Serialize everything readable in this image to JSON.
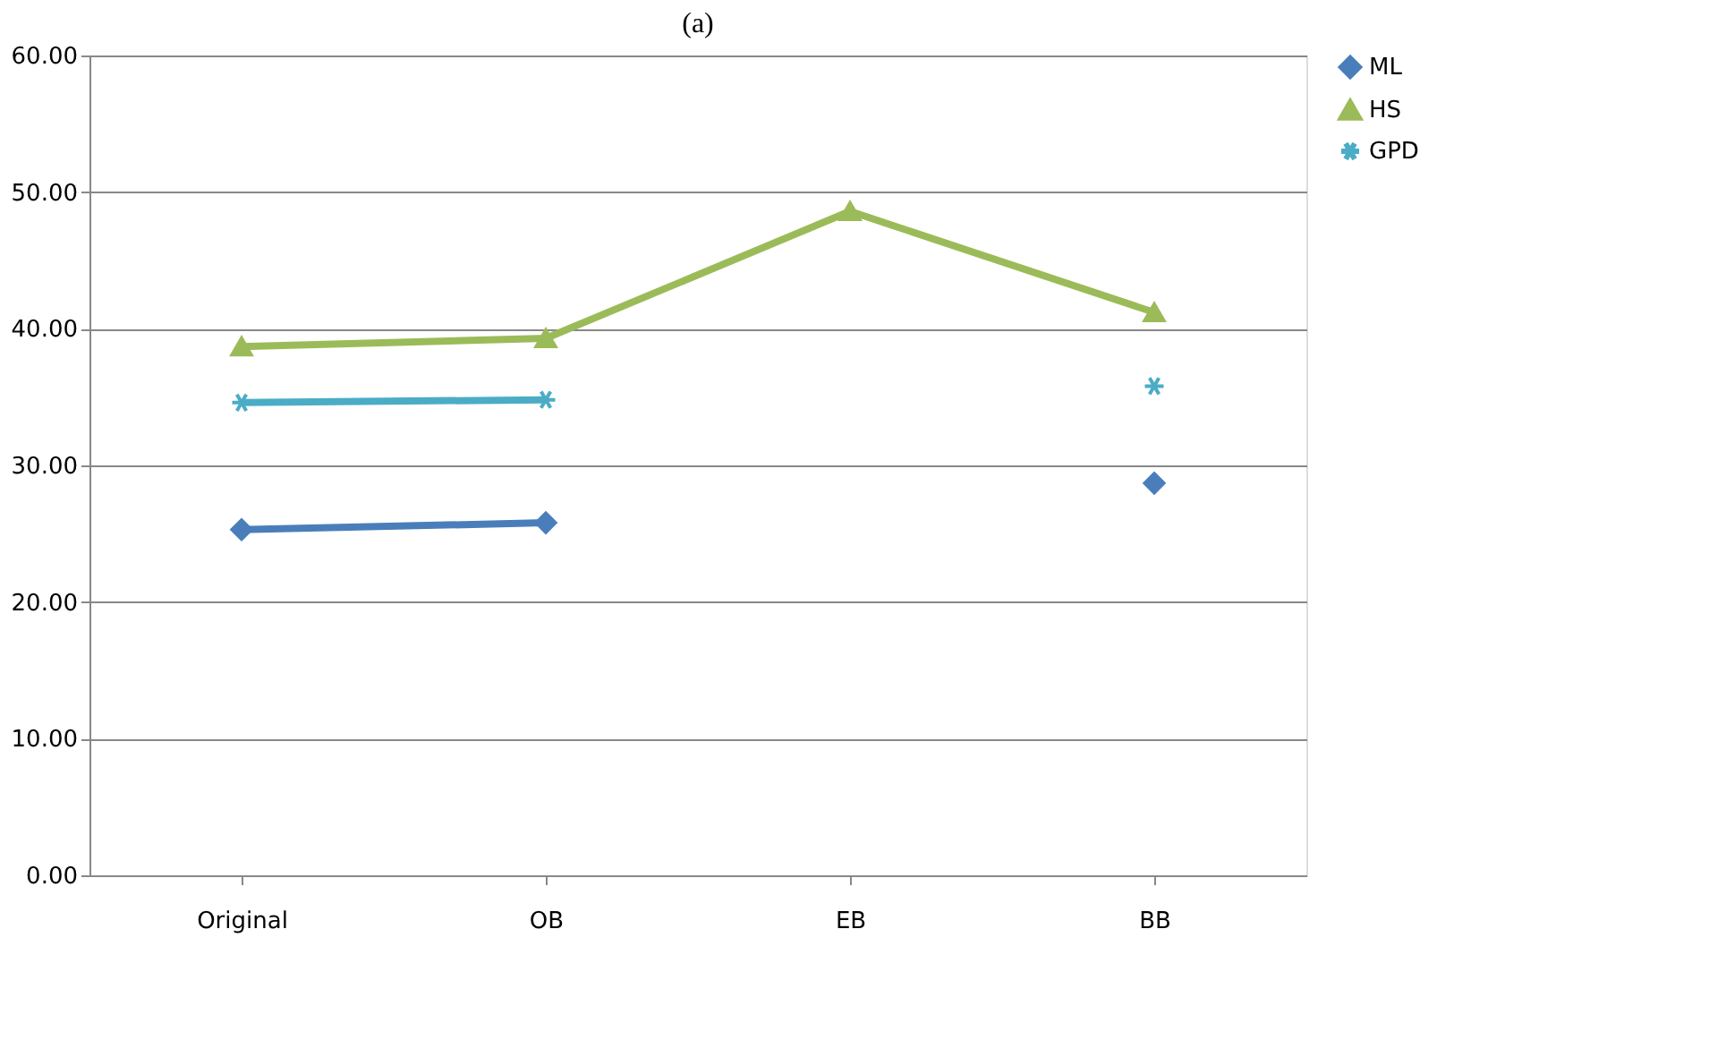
{
  "chart_data": {
    "type": "line",
    "title": "(a)",
    "categories": [
      "Original",
      "OB",
      "EB",
      "BB"
    ],
    "series": [
      {
        "name": "ML",
        "color": "#4a7ebb",
        "marker": "diamond",
        "values": [
          25.3,
          25.8,
          null,
          28.7
        ]
      },
      {
        "name": "HS",
        "color": "#9bbb59",
        "marker": "triangle",
        "values": [
          38.7,
          39.3,
          48.6,
          41.2
        ]
      },
      {
        "name": "GPD",
        "color": "#4bacc6",
        "marker": "cross",
        "values": [
          34.6,
          34.8,
          null,
          35.8
        ]
      }
    ],
    "ylim": [
      0,
      60
    ],
    "yticks": [
      {
        "value": 0,
        "label": "0.00"
      },
      {
        "value": 10,
        "label": "10.00"
      },
      {
        "value": 20,
        "label": "20.00"
      },
      {
        "value": 30,
        "label": "30.00"
      },
      {
        "value": 40,
        "label": "40.00"
      },
      {
        "value": 50,
        "label": "50.00"
      },
      {
        "value": 60,
        "label": "60.00"
      }
    ],
    "line_style": "solid",
    "grid": "y",
    "legend": "right"
  }
}
